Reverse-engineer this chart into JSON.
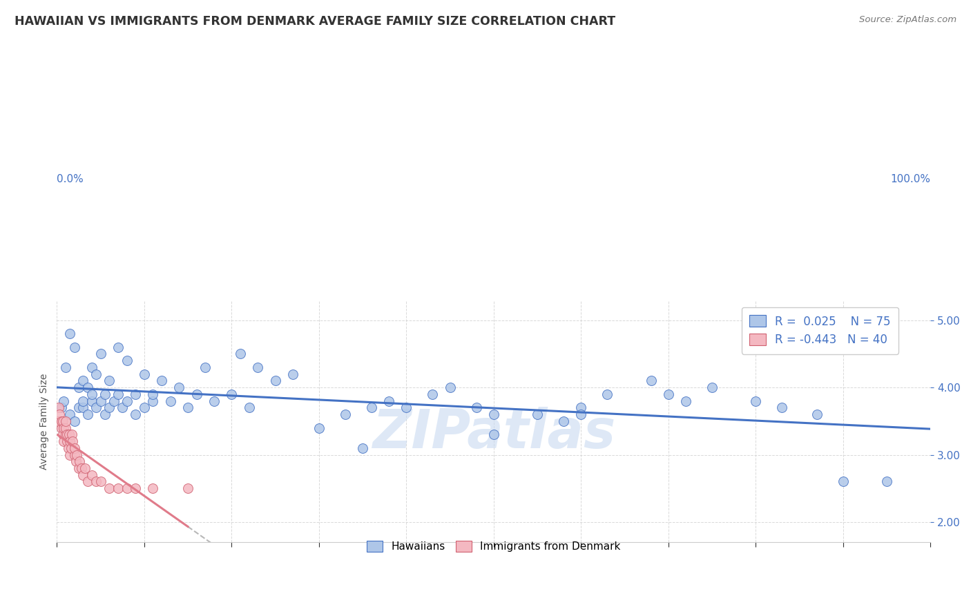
{
  "title": "HAWAIIAN VS IMMIGRANTS FROM DENMARK AVERAGE FAMILY SIZE CORRELATION CHART",
  "source": "Source: ZipAtlas.com",
  "ylabel": "Average Family Size",
  "yticks": [
    2.0,
    3.0,
    4.0,
    5.0
  ],
  "xlim": [
    0.0,
    1.0
  ],
  "ylim": [
    1.7,
    5.3
  ],
  "r_hawaiian": 0.025,
  "n_hawaiian": 75,
  "r_denmark": -0.443,
  "n_denmark": 40,
  "hawaiian_color": "#aec6e8",
  "denmark_color": "#f4b8c1",
  "hawaiian_line_color": "#4472c4",
  "denmark_line_color": "#e07b8a",
  "watermark_color": "#c8daf0",
  "hawaiian_x": [
    0.005,
    0.008,
    0.01,
    0.015,
    0.015,
    0.02,
    0.02,
    0.025,
    0.025,
    0.03,
    0.03,
    0.03,
    0.035,
    0.035,
    0.04,
    0.04,
    0.04,
    0.045,
    0.045,
    0.05,
    0.05,
    0.055,
    0.055,
    0.06,
    0.06,
    0.065,
    0.07,
    0.07,
    0.075,
    0.08,
    0.08,
    0.09,
    0.09,
    0.1,
    0.1,
    0.11,
    0.11,
    0.12,
    0.13,
    0.14,
    0.15,
    0.16,
    0.17,
    0.18,
    0.2,
    0.21,
    0.22,
    0.23,
    0.25,
    0.27,
    0.3,
    0.33,
    0.36,
    0.38,
    0.4,
    0.43,
    0.45,
    0.48,
    0.5,
    0.55,
    0.58,
    0.6,
    0.63,
    0.68,
    0.72,
    0.75,
    0.8,
    0.83,
    0.87,
    0.9,
    0.5,
    0.6,
    0.35,
    0.7,
    0.95
  ],
  "hawaiian_y": [
    3.7,
    3.8,
    4.3,
    3.6,
    4.8,
    3.5,
    4.6,
    3.7,
    4.0,
    3.7,
    3.8,
    4.1,
    3.6,
    4.0,
    3.8,
    4.3,
    3.9,
    3.7,
    4.2,
    3.8,
    4.5,
    3.6,
    3.9,
    3.7,
    4.1,
    3.8,
    3.9,
    4.6,
    3.7,
    3.8,
    4.4,
    3.6,
    3.9,
    3.7,
    4.2,
    3.8,
    3.9,
    4.1,
    3.8,
    4.0,
    3.7,
    3.9,
    4.3,
    3.8,
    3.9,
    4.5,
    3.7,
    4.3,
    4.1,
    4.2,
    3.4,
    3.6,
    3.7,
    3.8,
    3.7,
    3.9,
    4.0,
    3.7,
    3.6,
    3.6,
    3.5,
    3.7,
    3.9,
    4.1,
    3.8,
    4.0,
    3.8,
    3.7,
    3.6,
    2.6,
    3.3,
    3.6,
    3.1,
    3.9,
    2.6
  ],
  "denmark_x": [
    0.001,
    0.002,
    0.003,
    0.005,
    0.005,
    0.007,
    0.007,
    0.008,
    0.008,
    0.01,
    0.01,
    0.01,
    0.012,
    0.012,
    0.013,
    0.014,
    0.015,
    0.015,
    0.016,
    0.017,
    0.018,
    0.02,
    0.02,
    0.022,
    0.023,
    0.025,
    0.026,
    0.028,
    0.03,
    0.032,
    0.035,
    0.04,
    0.045,
    0.05,
    0.06,
    0.07,
    0.08,
    0.09,
    0.11,
    0.15
  ],
  "denmark_y": [
    3.5,
    3.7,
    3.6,
    3.4,
    3.5,
    3.3,
    3.5,
    3.2,
    3.4,
    3.3,
    3.4,
    3.5,
    3.2,
    3.3,
    3.1,
    3.3,
    3.0,
    3.2,
    3.1,
    3.3,
    3.2,
    3.0,
    3.1,
    2.9,
    3.0,
    2.8,
    2.9,
    2.8,
    2.7,
    2.8,
    2.6,
    2.7,
    2.6,
    2.6,
    2.5,
    2.5,
    2.5,
    2.5,
    2.5,
    2.5
  ]
}
